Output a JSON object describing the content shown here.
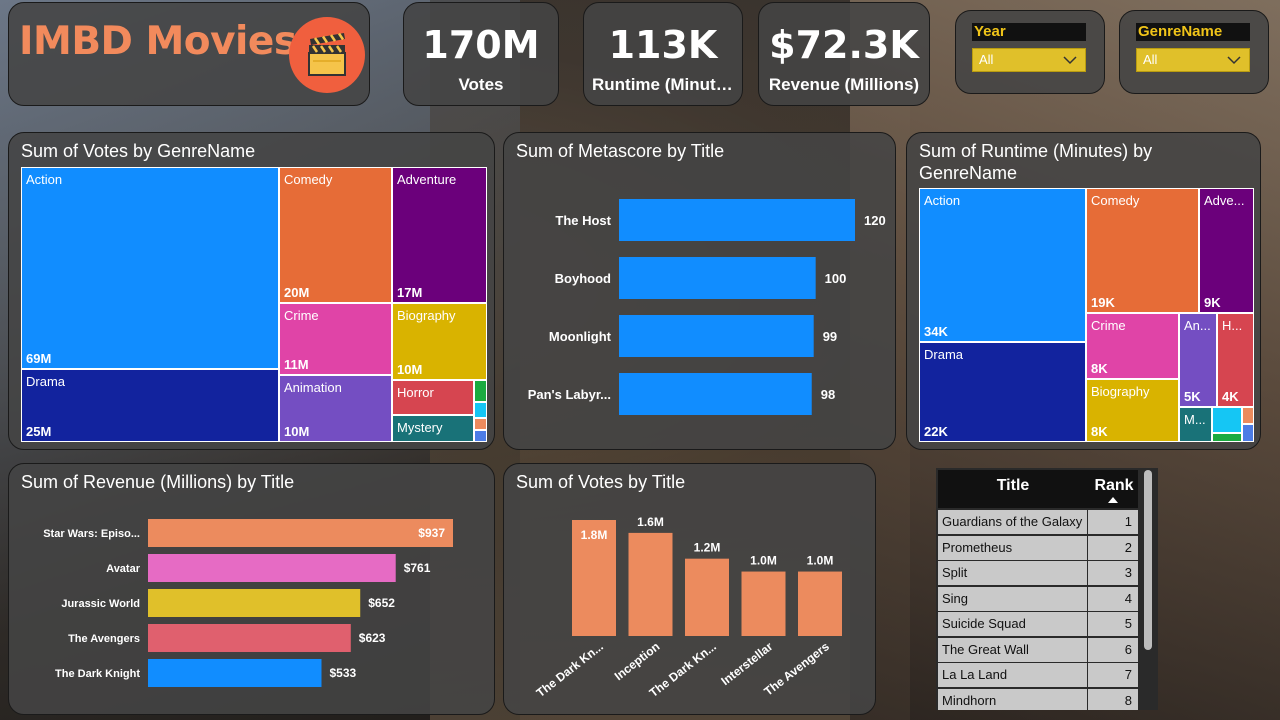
{
  "app": {
    "title": "IMBD Movies",
    "logo_icon": "clapperboard-icon",
    "accent": "#f28a5c",
    "logo_bg": "#f05f3e"
  },
  "kpis": [
    {
      "value": "170M",
      "label": "Votes"
    },
    {
      "value": "113K",
      "label": "Runtime (Minutes)"
    },
    {
      "value": "$72.3K",
      "label": "Revenue (Millions)"
    }
  ],
  "slicers": [
    {
      "title": "Year",
      "value": "All"
    },
    {
      "title": "GenreName",
      "value": "All"
    }
  ],
  "votes_treemap": {
    "title": "Sum of Votes by GenreName",
    "cells": [
      {
        "name": "Action",
        "value": "69M",
        "color": "#118dff"
      },
      {
        "name": "Drama",
        "value": "25M",
        "color": "#12239e"
      },
      {
        "name": "Comedy",
        "value": "20M",
        "color": "#e66c37"
      },
      {
        "name": "Adventure",
        "value": "17M",
        "color": "#6b007b"
      },
      {
        "name": "Crime",
        "value": "11M",
        "color": "#e044a7"
      },
      {
        "name": "Biography",
        "value": "10M",
        "color": "#d9b300"
      },
      {
        "name": "Animation",
        "value": "10M",
        "color": "#744ec2"
      },
      {
        "name": "Horror",
        "value": "",
        "color": "#d64550"
      },
      {
        "name": "Mystery",
        "value": "",
        "color": "#197278"
      }
    ]
  },
  "runtime_treemap": {
    "title": "Sum of Runtime (Minutes) by GenreName",
    "cells": [
      {
        "name": "Action",
        "value": "34K",
        "color": "#118dff"
      },
      {
        "name": "Drama",
        "value": "22K",
        "color": "#12239e"
      },
      {
        "name": "Comedy",
        "value": "19K",
        "color": "#e66c37"
      },
      {
        "name": "Adve...",
        "value": "9K",
        "color": "#6b007b"
      },
      {
        "name": "Crime",
        "value": "8K",
        "color": "#e044a7"
      },
      {
        "name": "Biography",
        "value": "8K",
        "color": "#d9b300"
      },
      {
        "name": "An...",
        "value": "5K",
        "color": "#744ec2"
      },
      {
        "name": "H...",
        "value": "4K",
        "color": "#d64550"
      },
      {
        "name": "M...",
        "value": "",
        "color": "#197278"
      }
    ]
  },
  "table": {
    "col_title": "Title",
    "col_rank": "Rank",
    "rows": [
      {
        "title": "Guardians of the Galaxy",
        "rank": "1"
      },
      {
        "title": "Prometheus",
        "rank": "2"
      },
      {
        "title": "Split",
        "rank": "3"
      },
      {
        "title": "Sing",
        "rank": "4"
      },
      {
        "title": "Suicide Squad",
        "rank": "5"
      },
      {
        "title": "The Great Wall",
        "rank": "6"
      },
      {
        "title": "La La Land",
        "rank": "7"
      },
      {
        "title": "Mindhorn",
        "rank": "8"
      }
    ]
  },
  "chart_data": [
    {
      "type": "bar",
      "orientation": "horizontal",
      "title": "Sum of Metascore by Title",
      "categories": [
        "The Host",
        "Boyhood",
        "Moonlight",
        "Pan's Labyr..."
      ],
      "values": [
        120,
        100,
        99,
        98
      ],
      "labels": [
        "120",
        "100",
        "99",
        "98"
      ],
      "color": "#118dff",
      "xlim": [
        0,
        120
      ]
    },
    {
      "type": "bar",
      "orientation": "horizontal",
      "title": "Sum of Revenue (Millions) by Title",
      "categories": [
        "Star Wars: Episo...",
        "Avatar",
        "Jurassic World",
        "The Avengers",
        "The Dark Knight"
      ],
      "values": [
        937,
        761,
        652,
        623,
        533
      ],
      "labels": [
        "$937",
        "$761",
        "$652",
        "$623",
        "$533"
      ],
      "colors": [
        "#ec8b5e",
        "#e66bc4",
        "#e0c02a",
        "#e0606e",
        "#118dff"
      ],
      "xlim": [
        0,
        937
      ]
    },
    {
      "type": "bar",
      "orientation": "vertical",
      "title": "Sum of Votes by Title",
      "categories": [
        "The Dark Kn...",
        "Inception",
        "The Dark Kn...",
        "Interstellar",
        "The Avengers"
      ],
      "values": [
        1.8,
        1.6,
        1.2,
        1.0,
        1.0
      ],
      "labels": [
        "1.8M",
        "1.6M",
        "1.2M",
        "1.0M",
        "1.0M"
      ],
      "color": "#ec8b5e",
      "ylim": [
        0,
        1.8
      ]
    }
  ]
}
